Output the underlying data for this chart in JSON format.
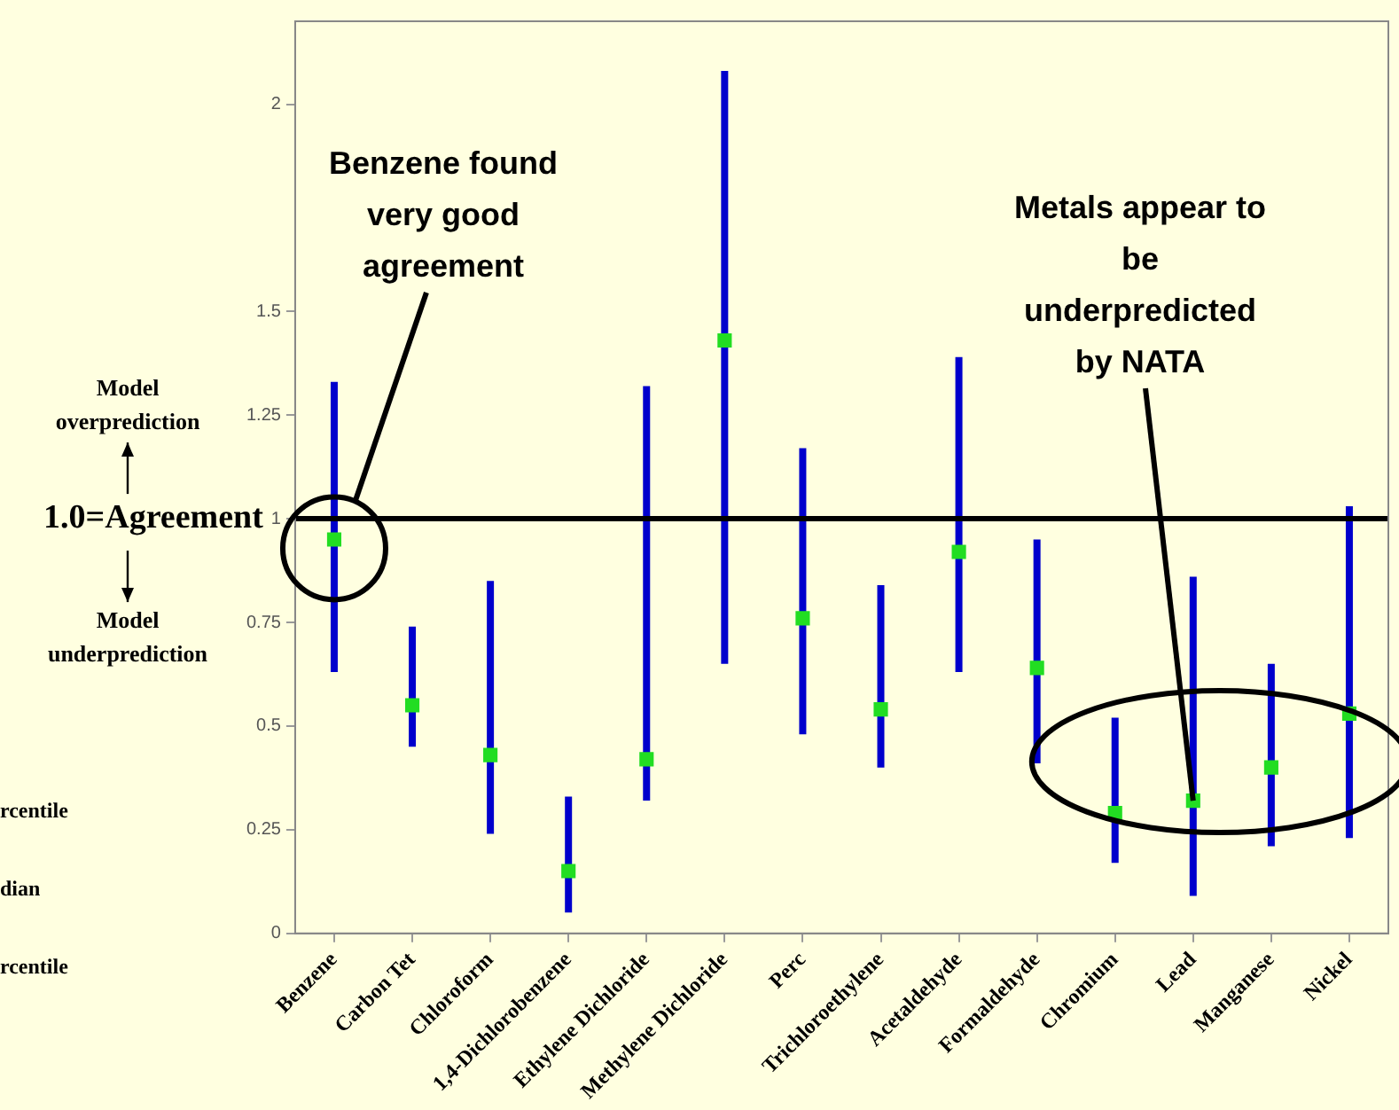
{
  "chart_data": {
    "type": "scatter",
    "categories": [
      "Benzene",
      "Carbon Tet",
      "Chloroform",
      "1,4-Dichlorobenzene",
      "Ethylene Dichloride",
      "Methylene Dichloride",
      "Perc",
      "Trichloroethylene",
      "Acetaldehyde",
      "Formaldehyde",
      "Chromium",
      "Lead",
      "Manganese",
      "Nickel"
    ],
    "series": [
      {
        "color": "#22dd22",
        "values": [
          0.95,
          0.55,
          0.43,
          0.15,
          0.42,
          1.43,
          0.76,
          0.54,
          0.92,
          0.64,
          0.29,
          0.32,
          0.4,
          0.53
        ],
        "errors": [
          [
            0.63,
            1.33
          ],
          [
            0.45,
            0.74
          ],
          [
            0.24,
            0.85
          ],
          [
            0.05,
            0.33
          ],
          [
            0.32,
            1.32
          ],
          [
            0.65,
            2.08
          ],
          [
            0.48,
            1.17
          ],
          [
            0.4,
            0.84
          ],
          [
            0.63,
            1.39
          ],
          [
            0.41,
            0.95
          ],
          [
            0.17,
            0.52
          ],
          [
            0.09,
            0.86
          ],
          [
            0.21,
            0.65
          ],
          [
            0.23,
            1.03
          ]
        ]
      }
    ],
    "ylim": [
      0,
      2.2
    ],
    "yticks": [
      0,
      0.25,
      0.5,
      0.75,
      1,
      1.25,
      1.5,
      2
    ],
    "ref_lines": [
      {
        "axis": "y",
        "value": 1,
        "label": "1.0=Agreement",
        "color": "#000000"
      }
    ],
    "annotations": [
      "Benzene found very good agreement",
      {
        "text": "Metals appear to be underpredicted by NATA",
        "x": "Lead",
        "y": 0.32
      },
      "Model overprediction",
      "Model underprediction",
      "rcentile",
      "dian",
      "rcentile"
    ],
    "marker": "square",
    "grid": false,
    "legend": false
  }
}
